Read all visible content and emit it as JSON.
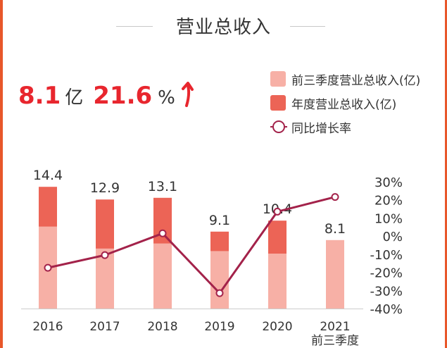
{
  "title": "营业总收入",
  "kpi": {
    "revenue_value": "8.1",
    "revenue_unit": "亿",
    "growth_value": "21.6",
    "growth_unit": "%"
  },
  "legend": [
    {
      "label": "前三季度营业总收入(亿)",
      "color": "#f7b0a6"
    },
    {
      "label": "年度营业总收入(亿)",
      "color": "#ec6456"
    },
    {
      "label": "同比增长率",
      "color": "#a3224a"
    }
  ],
  "colors": {
    "accent": "#e8262e",
    "edge": "#e8572a",
    "q3_bar": "#f7b0a6",
    "annual_bar": "#ec6456",
    "line": "#a3224a"
  },
  "chart_data": {
    "type": "bar",
    "categories": [
      "2016",
      "2017",
      "2018",
      "2019",
      "2020",
      "2021\n前三季度"
    ],
    "series": [
      {
        "name": "前三季度营业总收入(亿)",
        "values": [
          9.7,
          7.1,
          7.7,
          6.8,
          6.5,
          8.1
        ]
      },
      {
        "name": "年度营业总收入(亿)",
        "values": [
          14.4,
          12.9,
          13.1,
          9.1,
          10.4,
          null
        ]
      },
      {
        "name": "同比增长率",
        "axis": "right",
        "values": [
          -17.5,
          -10.5,
          1.5,
          -31.5,
          13.5,
          21.6
        ]
      }
    ],
    "bar_labels": [
      "14.4",
      "12.9",
      "13.1",
      "9.1",
      "10.4",
      "8.1"
    ],
    "ylim": [
      0,
      15
    ],
    "y2lim": [
      -40,
      30
    ],
    "y2_ticks": [
      "30%",
      "20%",
      "10%",
      "0%",
      "-10%",
      "-20%",
      "-30%",
      "-40%"
    ],
    "legend_position": "top-right"
  }
}
